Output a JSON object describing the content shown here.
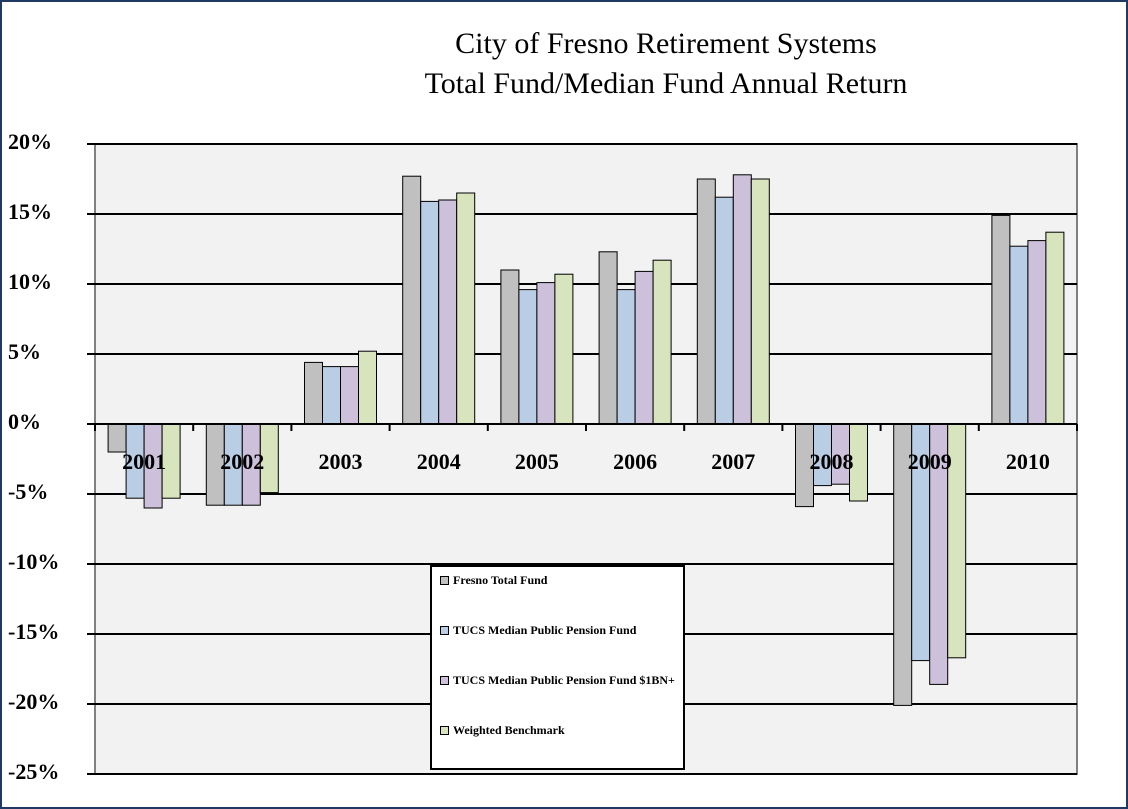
{
  "chart_data": {
    "type": "bar",
    "title": [
      "City of Fresno Retirement Systems",
      "Total Fund/Median Fund Annual Return"
    ],
    "categories": [
      "2001",
      "2002",
      "2003",
      "2004",
      "2005",
      "2006",
      "2007",
      "2008",
      "2009",
      "2010"
    ],
    "series": [
      {
        "name": "Fresno Total Fund",
        "color": "#c0c0c0",
        "values": [
          -2.0,
          -5.8,
          4.4,
          17.7,
          11.0,
          12.3,
          17.5,
          -5.9,
          -20.1,
          14.9
        ]
      },
      {
        "name": "TUCS Median Public Pension Fund",
        "color": "#b9cde5",
        "values": [
          -5.3,
          -5.8,
          4.1,
          15.9,
          9.6,
          9.6,
          16.2,
          -4.4,
          -16.9,
          12.7
        ]
      },
      {
        "name": "TUCS Median Public Pension Fund $1BN+",
        "color": "#ccc0da",
        "values": [
          -6.0,
          -5.8,
          4.1,
          16.0,
          10.1,
          10.9,
          17.8,
          -4.3,
          -18.6,
          13.1
        ]
      },
      {
        "name": "Weighted Benchmark",
        "color": "#d7e4bd",
        "values": [
          -5.3,
          -4.9,
          5.2,
          16.5,
          10.7,
          11.7,
          17.5,
          -5.5,
          -16.7,
          13.7
        ]
      }
    ],
    "ylim": [
      -25,
      20
    ],
    "yticks": [
      {
        "value": -25,
        "label": "-25%"
      },
      {
        "value": -20,
        "label": "-20%"
      },
      {
        "value": -15,
        "label": "-15%"
      },
      {
        "value": -10,
        "label": "-10%"
      },
      {
        "value": -5,
        "label": "-5%"
      },
      {
        "value": 0,
        "label": "0%"
      },
      {
        "value": 5,
        "label": "5%"
      },
      {
        "value": 10,
        "label": "10%"
      },
      {
        "value": 15,
        "label": "15%"
      },
      {
        "value": 20,
        "label": "20%"
      }
    ],
    "grid": true
  }
}
